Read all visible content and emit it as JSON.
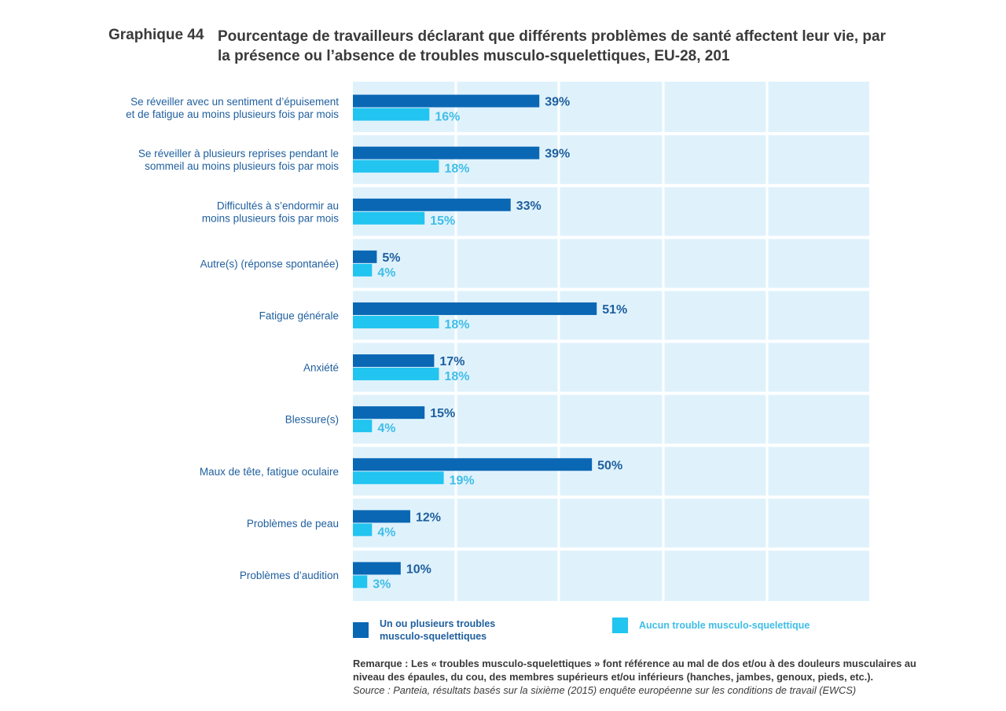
{
  "title": {
    "number": "Graphique 44",
    "text": "Pourcentage de travailleurs déclarant que différents problèmes de santé affectent leur vie, par la présence ou l’absence de troubles musculo-squelettiques, EU-28, 201"
  },
  "colors": {
    "series1": "#0a67b4",
    "series2": "#22c4f0",
    "plot_bg": "#dff2fc",
    "grid": "#ffffff",
    "category_text": "#1f5f9e",
    "series1_label": "#1f5f9e",
    "series2_label": "#3fbde8"
  },
  "chart_data": {
    "type": "bar",
    "orientation": "horizontal",
    "categories": [
      "Se réveiller avec un sentiment d’épuisement et de fatigue au moins plusieurs fois par mois",
      "Se réveiller à plusieurs reprises pendant le sommeil  au moins plusieurs fois par mois",
      "Difficultés à s’endormir au moins plusieurs fois par mois",
      "Autre(s) (réponse spontanée)",
      "Fatigue générale",
      "Anxiété",
      "Blessure(s)",
      "Maux de tête, fatigue oculaire",
      "Problèmes de peau",
      "Problèmes d’audition"
    ],
    "category_lines": [
      [
        "Se réveiller avec un sentiment d’épuisement",
        "et de fatigue au moins plusieurs fois par mois"
      ],
      [
        "Se réveiller à plusieurs reprises pendant le",
        "sommeil  au moins plusieurs fois par mois"
      ],
      [
        "Difficultés à s’endormir au",
        "moins plusieurs fois par mois"
      ],
      [
        "Autre(s) (réponse spontanée)"
      ],
      [
        "Fatigue générale"
      ],
      [
        "Anxiété"
      ],
      [
        "Blessure(s)"
      ],
      [
        "Maux de tête, fatigue oculaire"
      ],
      [
        "Problèmes de peau"
      ],
      [
        "Problèmes d’audition"
      ]
    ],
    "series": [
      {
        "name": "Un ou plusieurs troubles musculo-squelettiques",
        "values": [
          39,
          39,
          33,
          5,
          51,
          17,
          15,
          50,
          12,
          10
        ]
      },
      {
        "name": "Aucun trouble musculo-squelettique",
        "values": [
          16,
          18,
          15,
          4,
          18,
          18,
          4,
          19,
          4,
          3
        ]
      }
    ],
    "value_suffix": "%",
    "xlim": [
      0,
      108
    ],
    "grid": true,
    "legend_position": "bottom"
  },
  "legend": {
    "series1_lines": [
      "Un ou plusieurs troubles",
      "musculo-squelettiques"
    ],
    "series2_text": "Aucun trouble musculo-squelettique"
  },
  "notes": {
    "remark": "Remarque : Les « troubles musculo-squelettiques » font référence au mal de dos et/ou à des douleurs musculaires au niveau des épaules, du cou, des membres supérieurs et/ou inférieurs (hanches, jambes, genoux, pieds, etc.).",
    "source": "Source : Panteia, résultats basés sur la sixième (2015) enquête européenne sur les conditions de travail (EWCS)"
  }
}
